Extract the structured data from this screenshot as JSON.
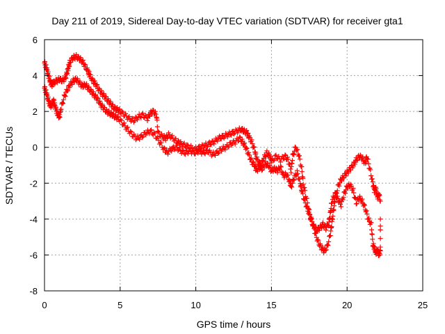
{
  "chart_data": {
    "type": "scatter",
    "title": "Day 211 of 2019, Sidereal Day-to-day VTEC variation (SDTVAR) for receiver gta1",
    "xlabel": "GPS time / hours",
    "ylabel": "SDTVAR / TECUs",
    "xlim": [
      0,
      25
    ],
    "ylim": [
      -8,
      6
    ],
    "xticks": [
      0,
      5,
      10,
      15,
      20,
      25
    ],
    "yticks": [
      -8,
      -6,
      -4,
      -2,
      0,
      2,
      4,
      6
    ],
    "grid": true,
    "marker": "plus",
    "series": [
      {
        "name": "SDTVAR",
        "color": "#ff0000",
        "trace_a": [
          [
            0.0,
            4.7
          ],
          [
            0.1,
            4.5
          ],
          [
            0.2,
            4.2
          ],
          [
            0.3,
            3.9
          ],
          [
            0.4,
            3.6
          ],
          [
            0.5,
            3.5
          ],
          [
            0.6,
            3.6
          ],
          [
            0.8,
            3.7
          ],
          [
            1.0,
            3.8
          ],
          [
            1.2,
            3.7
          ],
          [
            1.4,
            3.9
          ],
          [
            1.5,
            4.2
          ],
          [
            1.6,
            4.5
          ],
          [
            1.7,
            4.8
          ],
          [
            1.9,
            5.0
          ],
          [
            2.1,
            5.05
          ],
          [
            2.3,
            4.95
          ],
          [
            2.5,
            4.8
          ],
          [
            2.7,
            4.5
          ],
          [
            2.9,
            4.2
          ],
          [
            3.0,
            4.0
          ],
          [
            3.2,
            3.7
          ],
          [
            3.4,
            3.5
          ],
          [
            3.6,
            3.2
          ],
          [
            3.8,
            3.0
          ],
          [
            4.0,
            2.8
          ],
          [
            4.2,
            2.6
          ],
          [
            4.4,
            2.4
          ],
          [
            4.6,
            2.2
          ],
          [
            4.8,
            2.1
          ],
          [
            5.0,
            2.0
          ],
          [
            5.3,
            1.8
          ],
          [
            5.6,
            1.6
          ],
          [
            5.9,
            1.5
          ],
          [
            6.2,
            1.7
          ],
          [
            6.5,
            1.8
          ],
          [
            6.8,
            1.6
          ],
          [
            7.0,
            1.9
          ],
          [
            7.2,
            2.0
          ],
          [
            7.4,
            1.8
          ],
          [
            7.5,
            0.8
          ],
          [
            7.8,
            0.6
          ],
          [
            8.0,
            0.5
          ],
          [
            8.2,
            0.7
          ],
          [
            8.5,
            0.5
          ],
          [
            8.8,
            0.3
          ],
          [
            9.0,
            0.2
          ],
          [
            9.3,
            0.1
          ],
          [
            9.6,
            0.0
          ],
          [
            10.0,
            -0.1
          ],
          [
            10.3,
            0.0
          ],
          [
            10.6,
            0.1
          ],
          [
            10.9,
            0.2
          ],
          [
            11.2,
            0.3
          ],
          [
            11.5,
            0.5
          ],
          [
            11.8,
            0.6
          ],
          [
            12.1,
            0.7
          ],
          [
            12.4,
            0.8
          ],
          [
            12.7,
            0.9
          ],
          [
            13.0,
            1.0
          ],
          [
            13.2,
            0.9
          ],
          [
            13.4,
            0.8
          ],
          [
            13.5,
            0.6
          ],
          [
            13.7,
            0.3
          ],
          [
            13.9,
            -0.2
          ],
          [
            14.0,
            -0.6
          ],
          [
            14.2,
            -0.9
          ],
          [
            14.3,
            -1.0
          ],
          [
            14.5,
            -0.6
          ],
          [
            14.7,
            -0.3
          ],
          [
            14.9,
            -0.5
          ],
          [
            15.0,
            -0.8
          ],
          [
            15.3,
            -0.5
          ],
          [
            15.6,
            -0.7
          ],
          [
            15.9,
            -0.5
          ],
          [
            16.1,
            -0.7
          ],
          [
            16.3,
            -1.3
          ],
          [
            16.4,
            -0.5
          ],
          [
            16.6,
            0.0
          ],
          [
            16.8,
            -0.4
          ],
          [
            17.0,
            -1.2
          ],
          [
            17.1,
            -2.0
          ],
          [
            17.3,
            -2.8
          ],
          [
            17.5,
            -3.6
          ],
          [
            17.7,
            -4.2
          ],
          [
            17.9,
            -4.8
          ],
          [
            18.1,
            -5.3
          ],
          [
            18.3,
            -5.6
          ],
          [
            18.5,
            -5.8
          ],
          [
            18.7,
            -5.5
          ],
          [
            18.9,
            -4.8
          ],
          [
            19.0,
            -4.2
          ],
          [
            19.1,
            -3.5
          ],
          [
            19.2,
            -2.9
          ],
          [
            19.4,
            -2.2
          ],
          [
            19.6,
            -1.8
          ],
          [
            19.8,
            -1.6
          ],
          [
            20.0,
            -1.4
          ],
          [
            20.2,
            -1.2
          ],
          [
            20.4,
            -1.0
          ],
          [
            20.6,
            -0.7
          ],
          [
            20.8,
            -0.5
          ],
          [
            21.0,
            -0.6
          ],
          [
            21.2,
            -0.9
          ],
          [
            21.3,
            -0.5
          ],
          [
            21.5,
            -1.2
          ],
          [
            21.7,
            -2.0
          ],
          [
            21.8,
            -2.4
          ],
          [
            21.9,
            -2.3
          ],
          [
            22.0,
            -2.8
          ],
          [
            22.1,
            -2.6
          ],
          [
            22.2,
            -3.0
          ]
        ],
        "trace_b": [
          [
            0.0,
            3.3
          ],
          [
            0.1,
            3.1
          ],
          [
            0.2,
            2.8
          ],
          [
            0.3,
            2.5
          ],
          [
            0.4,
            2.3
          ],
          [
            0.5,
            2.4
          ],
          [
            0.6,
            2.6
          ],
          [
            0.7,
            2.3
          ],
          [
            0.8,
            2.0
          ],
          [
            0.9,
            1.8
          ],
          [
            1.0,
            1.7
          ],
          [
            1.1,
            2.2
          ],
          [
            1.3,
            2.8
          ],
          [
            1.5,
            3.2
          ],
          [
            1.7,
            3.5
          ],
          [
            1.9,
            3.7
          ],
          [
            2.1,
            3.8
          ],
          [
            2.3,
            3.6
          ],
          [
            2.5,
            3.4
          ],
          [
            2.7,
            3.5
          ],
          [
            2.9,
            3.3
          ],
          [
            3.1,
            3.1
          ],
          [
            3.3,
            2.9
          ],
          [
            3.5,
            2.7
          ],
          [
            3.7,
            2.4
          ],
          [
            3.9,
            2.2
          ],
          [
            4.1,
            2.0
          ],
          [
            4.3,
            1.9
          ],
          [
            4.5,
            1.8
          ],
          [
            4.7,
            1.7
          ],
          [
            4.9,
            1.6
          ],
          [
            5.2,
            1.3
          ],
          [
            5.5,
            1.0
          ],
          [
            5.8,
            0.7
          ],
          [
            6.1,
            0.5
          ],
          [
            6.4,
            0.6
          ],
          [
            6.7,
            0.8
          ],
          [
            7.0,
            0.9
          ],
          [
            7.3,
            0.7
          ],
          [
            7.6,
            0.3
          ],
          [
            7.9,
            -0.1
          ],
          [
            8.1,
            -0.3
          ],
          [
            8.4,
            -0.1
          ],
          [
            8.7,
            0.0
          ],
          [
            9.0,
            -0.2
          ],
          [
            9.3,
            -0.3
          ],
          [
            9.6,
            -0.2
          ],
          [
            9.9,
            -0.3
          ],
          [
            10.2,
            -0.2
          ],
          [
            10.5,
            -0.3
          ],
          [
            10.8,
            -0.2
          ],
          [
            11.1,
            -0.4
          ],
          [
            11.4,
            -0.3
          ],
          [
            11.7,
            -0.1
          ],
          [
            12.0,
            0.0
          ],
          [
            12.3,
            0.2
          ],
          [
            12.6,
            0.3
          ],
          [
            12.9,
            0.5
          ],
          [
            13.1,
            0.3
          ],
          [
            13.3,
            0.0
          ],
          [
            13.5,
            -0.4
          ],
          [
            13.7,
            -0.8
          ],
          [
            13.9,
            -1.0
          ],
          [
            14.0,
            -1.3
          ],
          [
            14.2,
            -1.1
          ],
          [
            14.4,
            -1.2
          ],
          [
            14.6,
            -0.9
          ],
          [
            14.8,
            -1.0
          ],
          [
            15.0,
            -1.3
          ],
          [
            15.2,
            -1.2
          ],
          [
            15.4,
            -1.3
          ],
          [
            15.6,
            -1.1
          ],
          [
            15.8,
            -1.6
          ],
          [
            16.0,
            -1.5
          ],
          [
            16.2,
            -1.9
          ],
          [
            16.3,
            -2.2
          ],
          [
            16.5,
            -1.7
          ],
          [
            16.7,
            -1.4
          ],
          [
            16.9,
            -2.0
          ],
          [
            17.0,
            -2.4
          ],
          [
            17.2,
            -3.0
          ],
          [
            17.4,
            -3.5
          ],
          [
            17.6,
            -4.0
          ],
          [
            17.8,
            -4.4
          ],
          [
            18.0,
            -4.6
          ],
          [
            18.2,
            -4.5
          ],
          [
            18.4,
            -4.3
          ],
          [
            18.6,
            -4.5
          ],
          [
            18.8,
            -4.2
          ],
          [
            18.9,
            -3.6
          ],
          [
            19.0,
            -3.0
          ],
          [
            19.2,
            -2.6
          ],
          [
            19.4,
            -2.9
          ],
          [
            19.6,
            -3.2
          ],
          [
            19.8,
            -2.6
          ],
          [
            20.0,
            -2.2
          ],
          [
            20.2,
            -2.1
          ],
          [
            20.4,
            -2.4
          ],
          [
            20.6,
            -3.1
          ],
          [
            20.8,
            -2.8
          ],
          [
            21.0,
            -3.0
          ],
          [
            21.2,
            -3.4
          ],
          [
            21.4,
            -4.0
          ],
          [
            21.6,
            -4.3
          ],
          [
            21.7,
            -5.4
          ],
          [
            21.8,
            -5.6
          ],
          [
            21.9,
            -5.9
          ],
          [
            22.0,
            -5.7
          ],
          [
            22.1,
            -6.0
          ],
          [
            22.2,
            -5.8
          ],
          [
            22.2,
            -4.0
          ]
        ]
      }
    ]
  }
}
